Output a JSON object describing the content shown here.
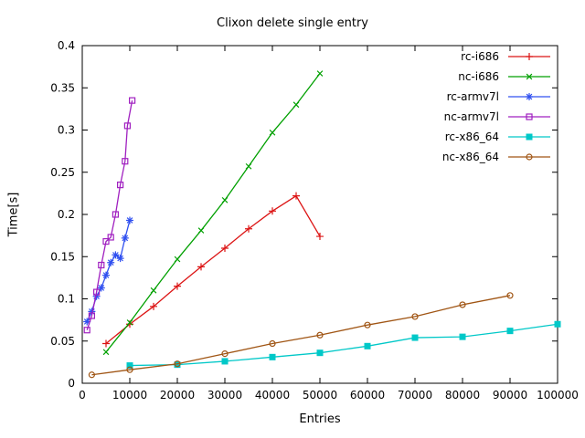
{
  "chart_data": {
    "type": "line",
    "title": "Clixon delete single entry",
    "xlabel": "Entries",
    "ylabel": "Time[s]",
    "xlim": [
      0,
      100000
    ],
    "ylim": [
      0,
      0.4
    ],
    "grid": false,
    "legend_position": "top-right-inside",
    "xticks": {
      "values": [
        0,
        10000,
        20000,
        30000,
        40000,
        50000,
        60000,
        70000,
        80000,
        90000,
        100000
      ],
      "labels": [
        "0",
        "10000",
        "20000",
        "30000",
        "40000",
        "50000",
        "60000",
        "70000",
        "80000",
        "90000",
        "100000"
      ]
    },
    "yticks": {
      "values": [
        0,
        0.05,
        0.1,
        0.15,
        0.2,
        0.25,
        0.3,
        0.35,
        0.4
      ],
      "labels": [
        "0",
        "0.05",
        "0.1",
        "0.15",
        "0.2",
        "0.25",
        "0.3",
        "0.35",
        "0.4"
      ]
    },
    "series": [
      {
        "name": "rc-i686",
        "color": "#dc1414",
        "marker": "plus",
        "x": [
          5000,
          10000,
          15000,
          20000,
          25000,
          30000,
          35000,
          40000,
          45000,
          50000
        ],
        "y": [
          0.047,
          0.07,
          0.091,
          0.115,
          0.138,
          0.16,
          0.183,
          0.204,
          0.222,
          0.174
        ]
      },
      {
        "name": "nc-i686",
        "color": "#00a000",
        "marker": "cross",
        "x": [
          5000,
          10000,
          15000,
          20000,
          25000,
          30000,
          35000,
          40000,
          45000,
          50000
        ],
        "y": [
          0.037,
          0.072,
          0.11,
          0.147,
          0.181,
          0.217,
          0.257,
          0.297,
          0.33,
          0.367
        ]
      },
      {
        "name": "rc-armv7l",
        "color": "#3050f0",
        "marker": "asterisk",
        "x": [
          1000,
          2000,
          3000,
          4000,
          5000,
          6000,
          7000,
          8000,
          9000,
          10000
        ],
        "y": [
          0.073,
          0.085,
          0.103,
          0.113,
          0.128,
          0.143,
          0.152,
          0.148,
          0.172,
          0.193
        ]
      },
      {
        "name": "nc-armv7l",
        "color": "#a020c0",
        "marker": "square-open",
        "x": [
          1000,
          2000,
          3000,
          4000,
          5000,
          6000,
          7000,
          8000,
          9000,
          9500,
          10500
        ],
        "y": [
          0.063,
          0.08,
          0.108,
          0.14,
          0.168,
          0.173,
          0.2,
          0.235,
          0.263,
          0.305,
          0.335
        ]
      },
      {
        "name": "rc-x86_64",
        "color": "#00c8c8",
        "marker": "square-filled",
        "x": [
          10000,
          20000,
          30000,
          40000,
          50000,
          60000,
          70000,
          80000,
          90000,
          100000
        ],
        "y": [
          0.021,
          0.022,
          0.026,
          0.031,
          0.036,
          0.044,
          0.054,
          0.055,
          0.062,
          0.07
        ]
      },
      {
        "name": "nc-x86_64",
        "color": "#a05514",
        "marker": "circle-open",
        "x": [
          2000,
          10000,
          20000,
          30000,
          40000,
          50000,
          60000,
          70000,
          80000,
          90000
        ],
        "y": [
          0.01,
          0.016,
          0.023,
          0.035,
          0.047,
          0.057,
          0.069,
          0.079,
          0.093,
          0.104
        ]
      }
    ]
  }
}
